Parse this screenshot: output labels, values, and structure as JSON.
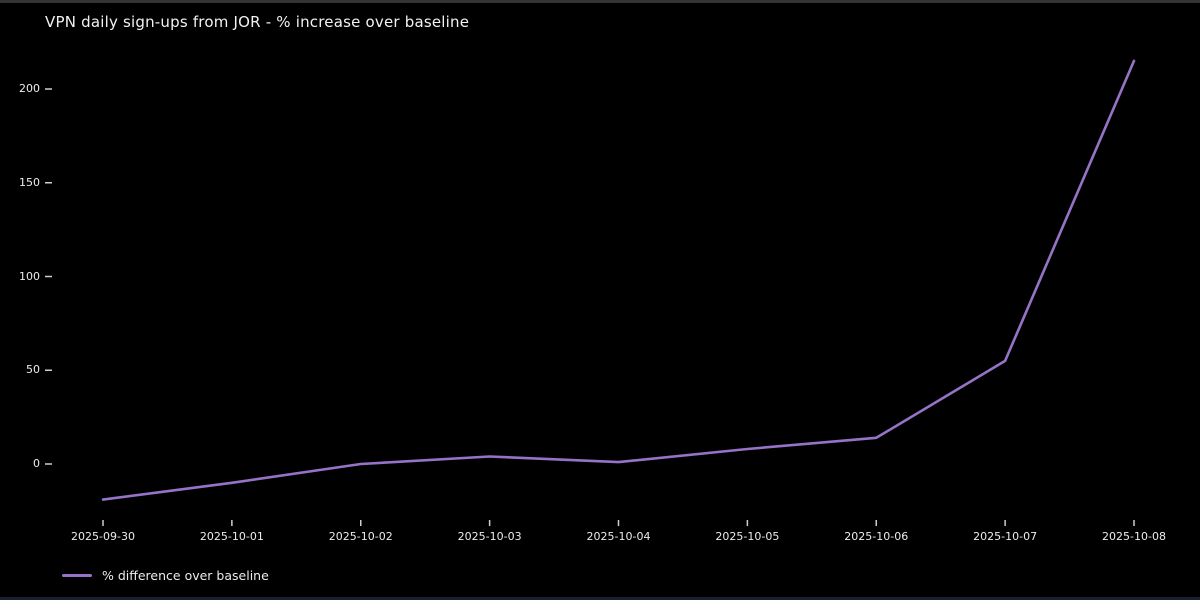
{
  "chart": {
    "title": "VPN daily sign-ups from JOR - % increase over baseline",
    "legend": {
      "label": "% difference over baseline"
    },
    "colors": {
      "background": "#000000",
      "text": "#ececec",
      "line": "#9673c7",
      "tick": "#cfcfcf"
    }
  },
  "chart_data": {
    "type": "line",
    "title": "VPN daily sign-ups from JOR - % increase over baseline",
    "categories": [
      "2025-09-30",
      "2025-10-01",
      "2025-10-02",
      "2025-10-03",
      "2025-10-04",
      "2025-10-05",
      "2025-10-06",
      "2025-10-07",
      "2025-10-08"
    ],
    "series": [
      {
        "name": "% difference over baseline",
        "values": [
          -19,
          -10,
          0,
          4,
          1,
          8,
          14,
          55,
          215
        ]
      }
    ],
    "xlabel": "",
    "ylabel": "",
    "yticks": [
      0,
      50,
      100,
      150,
      200
    ],
    "ylim": [
      -30,
      221
    ],
    "grid": false,
    "legend_position": "bottom-left"
  }
}
